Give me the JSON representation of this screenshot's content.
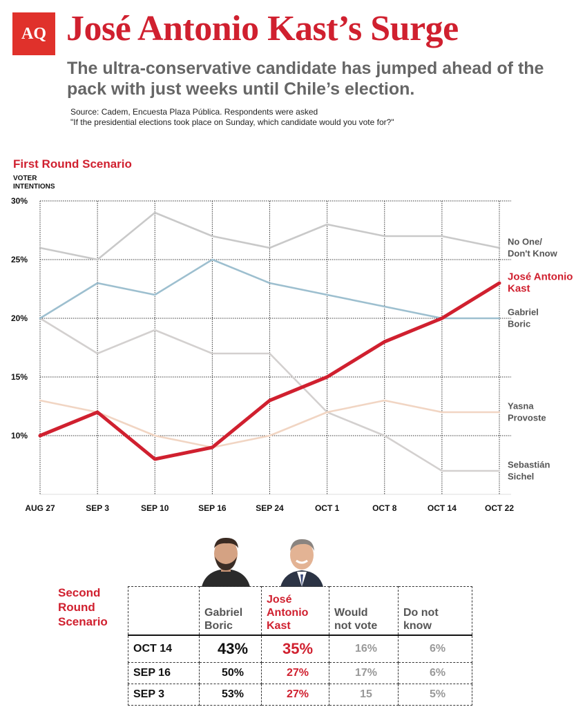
{
  "header": {
    "logo": "AQ",
    "title": "José Antonio Kast’s Surge",
    "subtitle": "The ultra-conservative candidate has jumped ahead of the pack with just weeks until Chile’s election.",
    "source_line1": "Source: Cadem, Encuesta Plaza Pública. Respondents were asked",
    "source_line2": "\"If the presidential elections took place on Sunday, which candidate would you vote for?\""
  },
  "chart_data": {
    "type": "line",
    "title": "First Round Scenario",
    "ylabel": "VOTER INTENTIONS",
    "x": [
      "AUG 27",
      "SEP 3",
      "SEP 10",
      "SEP 16",
      "SEP 24",
      "OCT 1",
      "OCT 8",
      "OCT 14",
      "OCT 22"
    ],
    "ylim": [
      5,
      30
    ],
    "yticks": [
      10,
      15,
      20,
      25,
      30
    ],
    "ytick_labels": [
      "10%",
      "15%",
      "20%",
      "25%",
      "30%"
    ],
    "grid": true,
    "series": [
      {
        "name": "No One/ Don't Know",
        "label_lines": [
          "No One/",
          "Don't Know"
        ],
        "color": "#c9c9c9",
        "values": [
          26,
          25,
          29,
          27,
          26,
          28,
          27,
          27,
          26
        ]
      },
      {
        "name": "Sebastián Sichel",
        "label_lines": [
          "Sebastián",
          "Sichel"
        ],
        "color": "#d3d0cf",
        "values": [
          20,
          17,
          19,
          17,
          17,
          12,
          10,
          7,
          7
        ]
      },
      {
        "name": "Yasna Provoste",
        "label_lines": [
          "Yasna",
          "Provoste"
        ],
        "color": "#f1d5c3",
        "values": [
          13,
          12,
          10,
          9,
          10,
          12,
          13,
          12,
          12
        ]
      },
      {
        "name": "Gabriel Boric",
        "label_lines": [
          "Gabriel",
          "Boric"
        ],
        "color": "#9dbfcf",
        "values": [
          20,
          23,
          22,
          25,
          23,
          22,
          21,
          20,
          20
        ]
      },
      {
        "name": "José Antonio Kast",
        "label_lines": [
          "José Antonio",
          "Kast"
        ],
        "color": "#d0202f",
        "values": [
          10,
          12,
          8,
          9,
          13,
          15,
          18,
          20,
          23
        ]
      }
    ]
  },
  "second_round": {
    "title_lines": [
      "Second",
      "Round",
      "Scenario"
    ],
    "headers": {
      "boric": [
        "Gabriel",
        "Boric"
      ],
      "kast": [
        "José",
        "Antonio",
        "Kast"
      ],
      "would_not": [
        "Would",
        "not vote"
      ],
      "dont_know": [
        "Do not",
        "know"
      ]
    },
    "rows": [
      {
        "date": "OCT 14",
        "boric": "43%",
        "kast": "35%",
        "would_not": "16%",
        "dont_know": "6%"
      },
      {
        "date": "SEP 16",
        "boric": "50%",
        "kast": "27%",
        "would_not": "17%",
        "dont_know": "6%"
      },
      {
        "date": "SEP 3",
        "boric": "53%",
        "kast": "27%",
        "would_not": "15",
        "dont_know": "5%"
      }
    ]
  }
}
